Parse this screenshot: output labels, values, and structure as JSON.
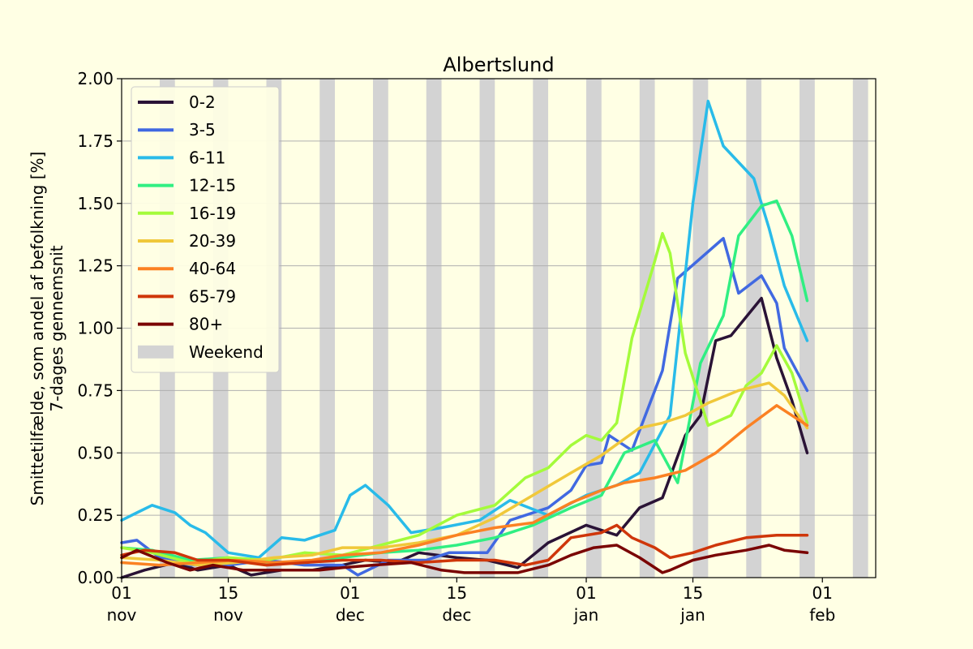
{
  "chart_data": {
    "type": "line",
    "title": "Albertslund",
    "ylabel_line1": "Smittetilfælde, som andel af befolkning [%]",
    "ylabel_line2": "7-dages gennemsnit",
    "xlim": [
      "2021-11-01",
      "2022-02-08"
    ],
    "ylim": [
      0,
      2.0
    ],
    "grid": "horizontal",
    "legend_position": "top-left",
    "yticks": [
      {
        "value": 0.0,
        "label": "0.00"
      },
      {
        "value": 0.25,
        "label": "0.25"
      },
      {
        "value": 0.5,
        "label": "0.50"
      },
      {
        "value": 0.75,
        "label": "0.75"
      },
      {
        "value": 1.0,
        "label": "1.00"
      },
      {
        "value": 1.25,
        "label": "1.25"
      },
      {
        "value": 1.5,
        "label": "1.50"
      },
      {
        "value": 1.75,
        "label": "1.75"
      },
      {
        "value": 2.0,
        "label": "2.00"
      }
    ],
    "xticks": [
      {
        "date": "2021-11-01",
        "day": "01",
        "month": "nov"
      },
      {
        "date": "2021-11-15",
        "day": "15",
        "month": "nov"
      },
      {
        "date": "2021-12-01",
        "day": "01",
        "month": "dec"
      },
      {
        "date": "2021-12-15",
        "day": "15",
        "month": "dec"
      },
      {
        "date": "2022-01-01",
        "day": "01",
        "month": "jan"
      },
      {
        "date": "2022-01-15",
        "day": "15",
        "month": "jan"
      },
      {
        "date": "2022-02-01",
        "day": "01",
        "month": "feb"
      }
    ],
    "weekends": [
      {
        "start": "2021-11-06",
        "end": "2021-11-08"
      },
      {
        "start": "2021-11-13",
        "end": "2021-11-15"
      },
      {
        "start": "2021-11-20",
        "end": "2021-11-22"
      },
      {
        "start": "2021-11-27",
        "end": "2021-11-29"
      },
      {
        "start": "2021-12-04",
        "end": "2021-12-06"
      },
      {
        "start": "2021-12-11",
        "end": "2021-12-13"
      },
      {
        "start": "2021-12-18",
        "end": "2021-12-20"
      },
      {
        "start": "2021-12-25",
        "end": "2021-12-27"
      },
      {
        "start": "2022-01-01",
        "end": "2022-01-03"
      },
      {
        "start": "2022-01-08",
        "end": "2022-01-10"
      },
      {
        "start": "2022-01-15",
        "end": "2022-01-17"
      },
      {
        "start": "2022-01-22",
        "end": "2022-01-24"
      },
      {
        "start": "2022-01-29",
        "end": "2022-01-31"
      },
      {
        "start": "2022-02-05",
        "end": "2022-02-07"
      }
    ],
    "weekend_label": "Weekend",
    "weekend_color": "#d3d3d3",
    "series": [
      {
        "name": "0-2",
        "color": "#2a1336",
        "points": [
          [
            "2021-11-01",
            0.0
          ],
          [
            "2021-11-04",
            0.03
          ],
          [
            "2021-11-08",
            0.06
          ],
          [
            "2021-11-11",
            0.03
          ],
          [
            "2021-11-15",
            0.05
          ],
          [
            "2021-11-18",
            0.01
          ],
          [
            "2021-11-22",
            0.03
          ],
          [
            "2021-11-26",
            0.03
          ],
          [
            "2021-11-30",
            0.05
          ],
          [
            "2021-12-03",
            0.07
          ],
          [
            "2021-12-07",
            0.06
          ],
          [
            "2021-12-10",
            0.1
          ],
          [
            "2021-12-15",
            0.08
          ],
          [
            "2021-12-19",
            0.07
          ],
          [
            "2021-12-23",
            0.04
          ],
          [
            "2021-12-27",
            0.14
          ],
          [
            "2022-01-01",
            0.21
          ],
          [
            "2022-01-05",
            0.17
          ],
          [
            "2022-01-08",
            0.28
          ],
          [
            "2022-01-11",
            0.32
          ],
          [
            "2022-01-14",
            0.57
          ],
          [
            "2022-01-16",
            0.65
          ],
          [
            "2022-01-18",
            0.95
          ],
          [
            "2022-01-20",
            0.97
          ],
          [
            "2022-01-24",
            1.12
          ],
          [
            "2022-01-26",
            0.88
          ],
          [
            "2022-01-28",
            0.71
          ],
          [
            "2022-01-30",
            0.5
          ]
        ]
      },
      {
        "name": "3-5",
        "color": "#4169e1",
        "points": [
          [
            "2021-11-01",
            0.14
          ],
          [
            "2021-11-03",
            0.15
          ],
          [
            "2021-11-06",
            0.08
          ],
          [
            "2021-11-10",
            0.05
          ],
          [
            "2021-11-15",
            0.05
          ],
          [
            "2021-11-20",
            0.07
          ],
          [
            "2021-11-25",
            0.05
          ],
          [
            "2021-11-30",
            0.05
          ],
          [
            "2021-12-02",
            0.01
          ],
          [
            "2021-12-06",
            0.07
          ],
          [
            "2021-12-11",
            0.07
          ],
          [
            "2021-12-14",
            0.1
          ],
          [
            "2021-12-19",
            0.1
          ],
          [
            "2021-12-22",
            0.23
          ],
          [
            "2021-12-27",
            0.28
          ],
          [
            "2021-12-30",
            0.35
          ],
          [
            "2022-01-01",
            0.45
          ],
          [
            "2022-01-03",
            0.46
          ],
          [
            "2022-01-04",
            0.57
          ],
          [
            "2022-01-07",
            0.51
          ],
          [
            "2022-01-11",
            0.83
          ],
          [
            "2022-01-13",
            1.2
          ],
          [
            "2022-01-16",
            1.28
          ],
          [
            "2022-01-19",
            1.36
          ],
          [
            "2022-01-21",
            1.14
          ],
          [
            "2022-01-24",
            1.21
          ],
          [
            "2022-01-26",
            1.1
          ],
          [
            "2022-01-27",
            0.92
          ],
          [
            "2022-01-30",
            0.75
          ]
        ]
      },
      {
        "name": "6-11",
        "color": "#29bbe9",
        "points": [
          [
            "2021-11-01",
            0.23
          ],
          [
            "2021-11-03",
            0.26
          ],
          [
            "2021-11-05",
            0.29
          ],
          [
            "2021-11-08",
            0.26
          ],
          [
            "2021-11-10",
            0.21
          ],
          [
            "2021-11-12",
            0.18
          ],
          [
            "2021-11-15",
            0.1
          ],
          [
            "2021-11-19",
            0.08
          ],
          [
            "2021-11-22",
            0.16
          ],
          [
            "2021-11-25",
            0.15
          ],
          [
            "2021-11-29",
            0.19
          ],
          [
            "2021-12-01",
            0.33
          ],
          [
            "2021-12-03",
            0.37
          ],
          [
            "2021-12-06",
            0.29
          ],
          [
            "2021-12-09",
            0.18
          ],
          [
            "2021-12-13",
            0.2
          ],
          [
            "2021-12-18",
            0.23
          ],
          [
            "2021-12-22",
            0.31
          ],
          [
            "2021-12-27",
            0.25
          ],
          [
            "2022-01-01",
            0.33
          ],
          [
            "2022-01-05",
            0.37
          ],
          [
            "2022-01-08",
            0.42
          ],
          [
            "2022-01-12",
            0.65
          ],
          [
            "2022-01-15",
            1.5
          ],
          [
            "2022-01-17",
            1.91
          ],
          [
            "2022-01-19",
            1.73
          ],
          [
            "2022-01-23",
            1.6
          ],
          [
            "2022-01-25",
            1.4
          ],
          [
            "2022-01-27",
            1.17
          ],
          [
            "2022-01-30",
            0.95
          ]
        ]
      },
      {
        "name": "12-15",
        "color": "#30ef82",
        "points": [
          [
            "2021-11-01",
            0.12
          ],
          [
            "2021-11-05",
            0.11
          ],
          [
            "2021-11-10",
            0.07
          ],
          [
            "2021-11-15",
            0.08
          ],
          [
            "2021-11-20",
            0.06
          ],
          [
            "2021-11-25",
            0.06
          ],
          [
            "2021-11-30",
            0.08
          ],
          [
            "2021-12-05",
            0.1
          ],
          [
            "2021-12-10",
            0.11
          ],
          [
            "2021-12-15",
            0.13
          ],
          [
            "2021-12-20",
            0.16
          ],
          [
            "2021-12-25",
            0.21
          ],
          [
            "2021-12-30",
            0.28
          ],
          [
            "2022-01-03",
            0.33
          ],
          [
            "2022-01-06",
            0.5
          ],
          [
            "2022-01-10",
            0.55
          ],
          [
            "2022-01-13",
            0.38
          ],
          [
            "2022-01-16",
            0.86
          ],
          [
            "2022-01-19",
            1.05
          ],
          [
            "2022-01-21",
            1.37
          ],
          [
            "2022-01-24",
            1.49
          ],
          [
            "2022-01-26",
            1.51
          ],
          [
            "2022-01-28",
            1.37
          ],
          [
            "2022-01-30",
            1.11
          ]
        ]
      },
      {
        "name": "16-19",
        "color": "#a4fb3b",
        "points": [
          [
            "2021-11-01",
            0.12
          ],
          [
            "2021-11-05",
            0.1
          ],
          [
            "2021-11-10",
            0.06
          ],
          [
            "2021-11-15",
            0.08
          ],
          [
            "2021-11-20",
            0.07
          ],
          [
            "2021-11-25",
            0.1
          ],
          [
            "2021-11-30",
            0.09
          ],
          [
            "2021-12-05",
            0.13
          ],
          [
            "2021-12-10",
            0.17
          ],
          [
            "2021-12-15",
            0.25
          ],
          [
            "2021-12-20",
            0.29
          ],
          [
            "2021-12-24",
            0.4
          ],
          [
            "2021-12-27",
            0.44
          ],
          [
            "2021-12-30",
            0.53
          ],
          [
            "2022-01-01",
            0.57
          ],
          [
            "2022-01-03",
            0.55
          ],
          [
            "2022-01-05",
            0.62
          ],
          [
            "2022-01-07",
            0.96
          ],
          [
            "2022-01-10",
            1.27
          ],
          [
            "2022-01-11",
            1.38
          ],
          [
            "2022-01-12",
            1.3
          ],
          [
            "2022-01-14",
            0.9
          ],
          [
            "2022-01-17",
            0.61
          ],
          [
            "2022-01-20",
            0.65
          ],
          [
            "2022-01-22",
            0.77
          ],
          [
            "2022-01-24",
            0.82
          ],
          [
            "2022-01-26",
            0.93
          ],
          [
            "2022-01-28",
            0.82
          ],
          [
            "2022-01-30",
            0.62
          ]
        ]
      },
      {
        "name": "20-39",
        "color": "#f0c83a",
        "points": [
          [
            "2021-11-01",
            0.08
          ],
          [
            "2021-11-06",
            0.07
          ],
          [
            "2021-11-11",
            0.05
          ],
          [
            "2021-11-16",
            0.06
          ],
          [
            "2021-11-21",
            0.08
          ],
          [
            "2021-11-26",
            0.09
          ],
          [
            "2021-11-30",
            0.12
          ],
          [
            "2021-12-05",
            0.12
          ],
          [
            "2021-12-10",
            0.14
          ],
          [
            "2021-12-15",
            0.17
          ],
          [
            "2021-12-20",
            0.24
          ],
          [
            "2021-12-25",
            0.33
          ],
          [
            "2021-12-30",
            0.42
          ],
          [
            "2022-01-03",
            0.49
          ],
          [
            "2022-01-08",
            0.6
          ],
          [
            "2022-01-11",
            0.62
          ],
          [
            "2022-01-14",
            0.65
          ],
          [
            "2022-01-17",
            0.7
          ],
          [
            "2022-01-21",
            0.75
          ],
          [
            "2022-01-25",
            0.78
          ],
          [
            "2022-01-27",
            0.73
          ],
          [
            "2022-01-30",
            0.6
          ]
        ]
      },
      {
        "name": "40-64",
        "color": "#fb8123",
        "points": [
          [
            "2021-11-01",
            0.06
          ],
          [
            "2021-11-06",
            0.05
          ],
          [
            "2021-11-11",
            0.06
          ],
          [
            "2021-11-16",
            0.07
          ],
          [
            "2021-11-21",
            0.06
          ],
          [
            "2021-11-26",
            0.07
          ],
          [
            "2021-11-30",
            0.09
          ],
          [
            "2021-12-05",
            0.1
          ],
          [
            "2021-12-10",
            0.13
          ],
          [
            "2021-12-15",
            0.17
          ],
          [
            "2021-12-20",
            0.2
          ],
          [
            "2021-12-25",
            0.22
          ],
          [
            "2021-12-30",
            0.3
          ],
          [
            "2022-01-03",
            0.35
          ],
          [
            "2022-01-06",
            0.38
          ],
          [
            "2022-01-10",
            0.4
          ],
          [
            "2022-01-14",
            0.43
          ],
          [
            "2022-01-18",
            0.5
          ],
          [
            "2022-01-22",
            0.6
          ],
          [
            "2022-01-26",
            0.69
          ],
          [
            "2022-01-30",
            0.61
          ]
        ]
      },
      {
        "name": "65-79",
        "color": "#cf360a",
        "points": [
          [
            "2021-11-01",
            0.09
          ],
          [
            "2021-11-04",
            0.11
          ],
          [
            "2021-11-08",
            0.1
          ],
          [
            "2021-11-11",
            0.07
          ],
          [
            "2021-11-15",
            0.07
          ],
          [
            "2021-11-20",
            0.05
          ],
          [
            "2021-11-25",
            0.06
          ],
          [
            "2021-11-30",
            0.07
          ],
          [
            "2021-12-05",
            0.07
          ],
          [
            "2021-12-10",
            0.06
          ],
          [
            "2021-12-15",
            0.07
          ],
          [
            "2021-12-20",
            0.07
          ],
          [
            "2021-12-24",
            0.05
          ],
          [
            "2021-12-27",
            0.07
          ],
          [
            "2021-12-30",
            0.16
          ],
          [
            "2022-01-03",
            0.18
          ],
          [
            "2022-01-05",
            0.21
          ],
          [
            "2022-01-07",
            0.16
          ],
          [
            "2022-01-10",
            0.12
          ],
          [
            "2022-01-12",
            0.08
          ],
          [
            "2022-01-15",
            0.1
          ],
          [
            "2022-01-18",
            0.13
          ],
          [
            "2022-01-22",
            0.16
          ],
          [
            "2022-01-26",
            0.17
          ],
          [
            "2022-01-30",
            0.17
          ]
        ]
      },
      {
        "name": "80+",
        "color": "#7a0403",
        "points": [
          [
            "2021-11-01",
            0.08
          ],
          [
            "2021-11-03",
            0.11
          ],
          [
            "2021-11-07",
            0.06
          ],
          [
            "2021-11-10",
            0.03
          ],
          [
            "2021-11-13",
            0.05
          ],
          [
            "2021-11-17",
            0.03
          ],
          [
            "2021-11-22",
            0.03
          ],
          [
            "2021-11-27",
            0.03
          ],
          [
            "2021-11-30",
            0.04
          ],
          [
            "2021-12-04",
            0.05
          ],
          [
            "2021-12-09",
            0.06
          ],
          [
            "2021-12-13",
            0.03
          ],
          [
            "2021-12-16",
            0.02
          ],
          [
            "2021-12-20",
            0.02
          ],
          [
            "2021-12-23",
            0.02
          ],
          [
            "2021-12-27",
            0.05
          ],
          [
            "2021-12-30",
            0.09
          ],
          [
            "2022-01-02",
            0.12
          ],
          [
            "2022-01-05",
            0.13
          ],
          [
            "2022-01-08",
            0.08
          ],
          [
            "2022-01-11",
            0.02
          ],
          [
            "2022-01-12",
            0.03
          ],
          [
            "2022-01-15",
            0.07
          ],
          [
            "2022-01-18",
            0.09
          ],
          [
            "2022-01-22",
            0.11
          ],
          [
            "2022-01-25",
            0.13
          ],
          [
            "2022-01-27",
            0.11
          ],
          [
            "2022-01-30",
            0.1
          ]
        ]
      }
    ]
  }
}
